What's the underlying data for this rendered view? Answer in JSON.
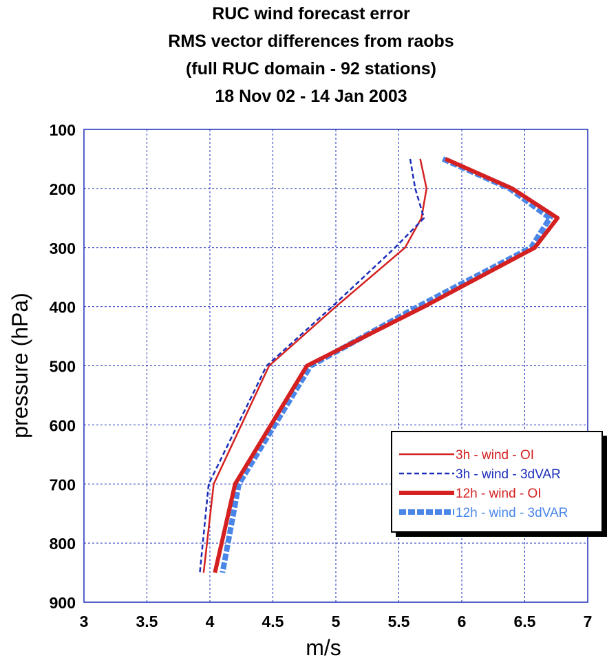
{
  "chart_data": {
    "type": "line",
    "title": [
      "RUC wind forecast error",
      "RMS vector differences from raobs",
      "(full RUC domain - 92 stations)",
      "18 Nov 02 - 14 Jan 2003"
    ],
    "xlabel": "m/s",
    "ylabel": "pressure (hPa)",
    "xlim": [
      3,
      7
    ],
    "ylim": [
      100,
      900
    ],
    "y_inverted": true,
    "grid": true,
    "legend_placement": "lower-right",
    "x_ticks": [
      "3",
      "3.5",
      "4",
      "4.5",
      "5",
      "5.5",
      "6",
      "6.5",
      "7"
    ],
    "y_ticks": [
      "100",
      "200",
      "300",
      "400",
      "500",
      "600",
      "700",
      "800",
      "900"
    ],
    "pressure_levels": [
      150,
      200,
      250,
      300,
      400,
      500,
      700,
      850
    ],
    "series": [
      {
        "name": "3h - wind - OI",
        "color": "#d42020",
        "style": "solid-thin",
        "values": [
          5.67,
          5.72,
          5.68,
          5.55,
          5.0,
          4.47,
          4.03,
          3.95
        ]
      },
      {
        "name": "3h - wind - 3dVAR",
        "color": "#1a2db8",
        "style": "dashed-thin",
        "values": [
          5.59,
          5.63,
          5.7,
          5.47,
          4.97,
          4.45,
          3.99,
          3.92
        ]
      },
      {
        "name": "12h - wind - OI",
        "color": "#d42020",
        "style": "solid-thick",
        "values": [
          5.87,
          6.4,
          6.76,
          6.58,
          5.7,
          4.77,
          4.2,
          4.04
        ]
      },
      {
        "name": "12h - wind - 3dVAR",
        "color": "#4a86e8",
        "style": "dashed-thick",
        "values": [
          5.85,
          6.38,
          6.7,
          6.55,
          5.65,
          4.8,
          4.23,
          4.1
        ]
      }
    ]
  }
}
